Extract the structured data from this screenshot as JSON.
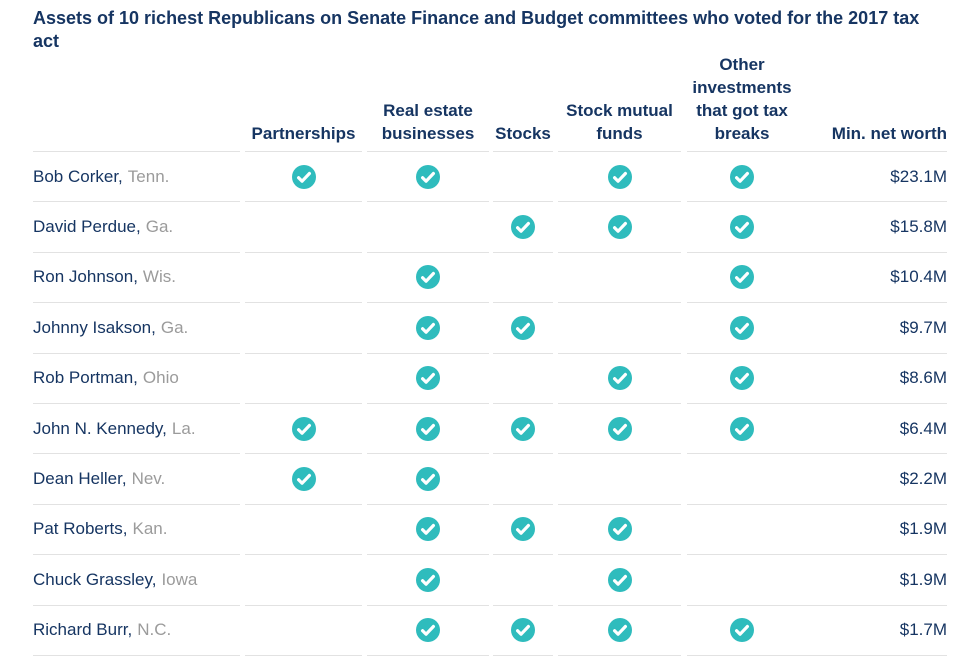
{
  "colors": {
    "accent_teal": "#2fbcbd",
    "navy": "#163562",
    "state_gray": "#9b9b9b",
    "divider": "#e2e2e2"
  },
  "chart_data": {
    "type": "table",
    "title": "Assets of 10 richest Republicans on Senate Finance and Budget committees who voted for the 2017 tax act",
    "columns": [
      "Partnerships",
      "Real estate businesses",
      "Stocks",
      "Stock mutual funds",
      "Other investments that got tax breaks",
      "Min. net worth"
    ],
    "check_icon": "check-circle",
    "rows": [
      {
        "name": "Bob Corker",
        "state": "Tenn.",
        "checks": [
          true,
          true,
          false,
          true,
          true
        ],
        "net_worth": "$23.1M"
      },
      {
        "name": "David Perdue",
        "state": "Ga.",
        "checks": [
          false,
          false,
          true,
          true,
          true
        ],
        "net_worth": "$15.8M"
      },
      {
        "name": "Ron Johnson",
        "state": "Wis.",
        "checks": [
          false,
          true,
          false,
          false,
          true
        ],
        "net_worth": "$10.4M"
      },
      {
        "name": "Johnny Isakson",
        "state": "Ga.",
        "checks": [
          false,
          true,
          true,
          false,
          true
        ],
        "net_worth": "$9.7M"
      },
      {
        "name": "Rob Portman",
        "state": "Ohio",
        "checks": [
          false,
          true,
          false,
          true,
          true
        ],
        "net_worth": "$8.6M"
      },
      {
        "name": "John N. Kennedy",
        "state": "La.",
        "checks": [
          true,
          true,
          true,
          true,
          true
        ],
        "net_worth": "$6.4M"
      },
      {
        "name": "Dean Heller",
        "state": "Nev.",
        "checks": [
          true,
          true,
          false,
          false,
          false
        ],
        "net_worth": "$2.2M"
      },
      {
        "name": "Pat Roberts",
        "state": "Kan.",
        "checks": [
          false,
          true,
          true,
          true,
          false
        ],
        "net_worth": "$1.9M"
      },
      {
        "name": "Chuck Grassley",
        "state": "Iowa",
        "checks": [
          false,
          true,
          false,
          true,
          false
        ],
        "net_worth": "$1.9M"
      },
      {
        "name": "Richard Burr",
        "state": "N.C.",
        "checks": [
          false,
          true,
          true,
          true,
          true
        ],
        "net_worth": "$1.7M"
      }
    ]
  }
}
